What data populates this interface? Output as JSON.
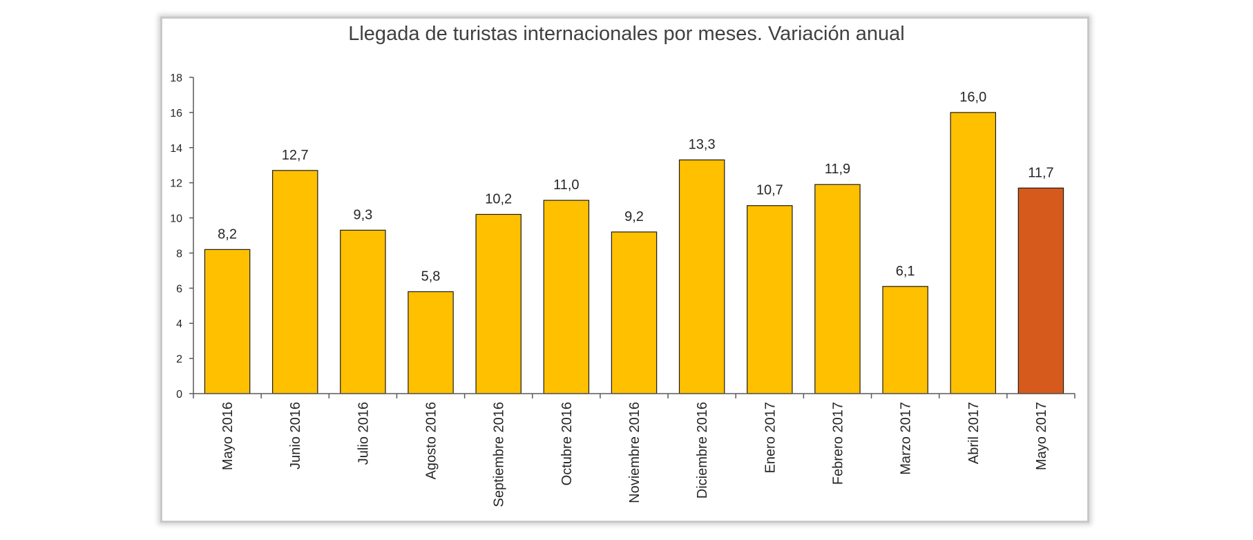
{
  "chart_data": {
    "type": "bar",
    "title": "Llegada de turistas internacionales por meses. Variación anual",
    "xlabel": "",
    "ylabel": "",
    "ylim": [
      0,
      18
    ],
    "yticks": [
      "0",
      "2",
      "4",
      "6",
      "8",
      "10",
      "12",
      "14",
      "16",
      "18"
    ],
    "categories": [
      "Mayo 2016",
      "Junio 2016",
      "Julio 2016",
      "Agosto 2016",
      "Septiembre 2016",
      "Octubre 2016",
      "Noviembre 2016",
      "Diciembre 2016",
      "Enero 2017",
      "Febrero 2017",
      "Marzo 2017",
      "Abril 2017",
      "Mayo 2017"
    ],
    "values": [
      8.2,
      12.7,
      9.3,
      5.8,
      10.2,
      11.0,
      9.2,
      13.3,
      10.7,
      11.9,
      6.1,
      16.0,
      11.7
    ],
    "data_labels": [
      "8,2",
      "12,7",
      "9,3",
      "5,8",
      "10,2",
      "11,0",
      "9,2",
      "13,3",
      "10,7",
      "11,9",
      "6,1",
      "16,0",
      "11,7"
    ],
    "grid": false,
    "legend": "none",
    "colors": {
      "bar": "#FFC000",
      "highlight_bar": "#D55A1B",
      "bar_border": "#1a1a1a",
      "axis": "#595959"
    },
    "highlight_index": 12
  }
}
